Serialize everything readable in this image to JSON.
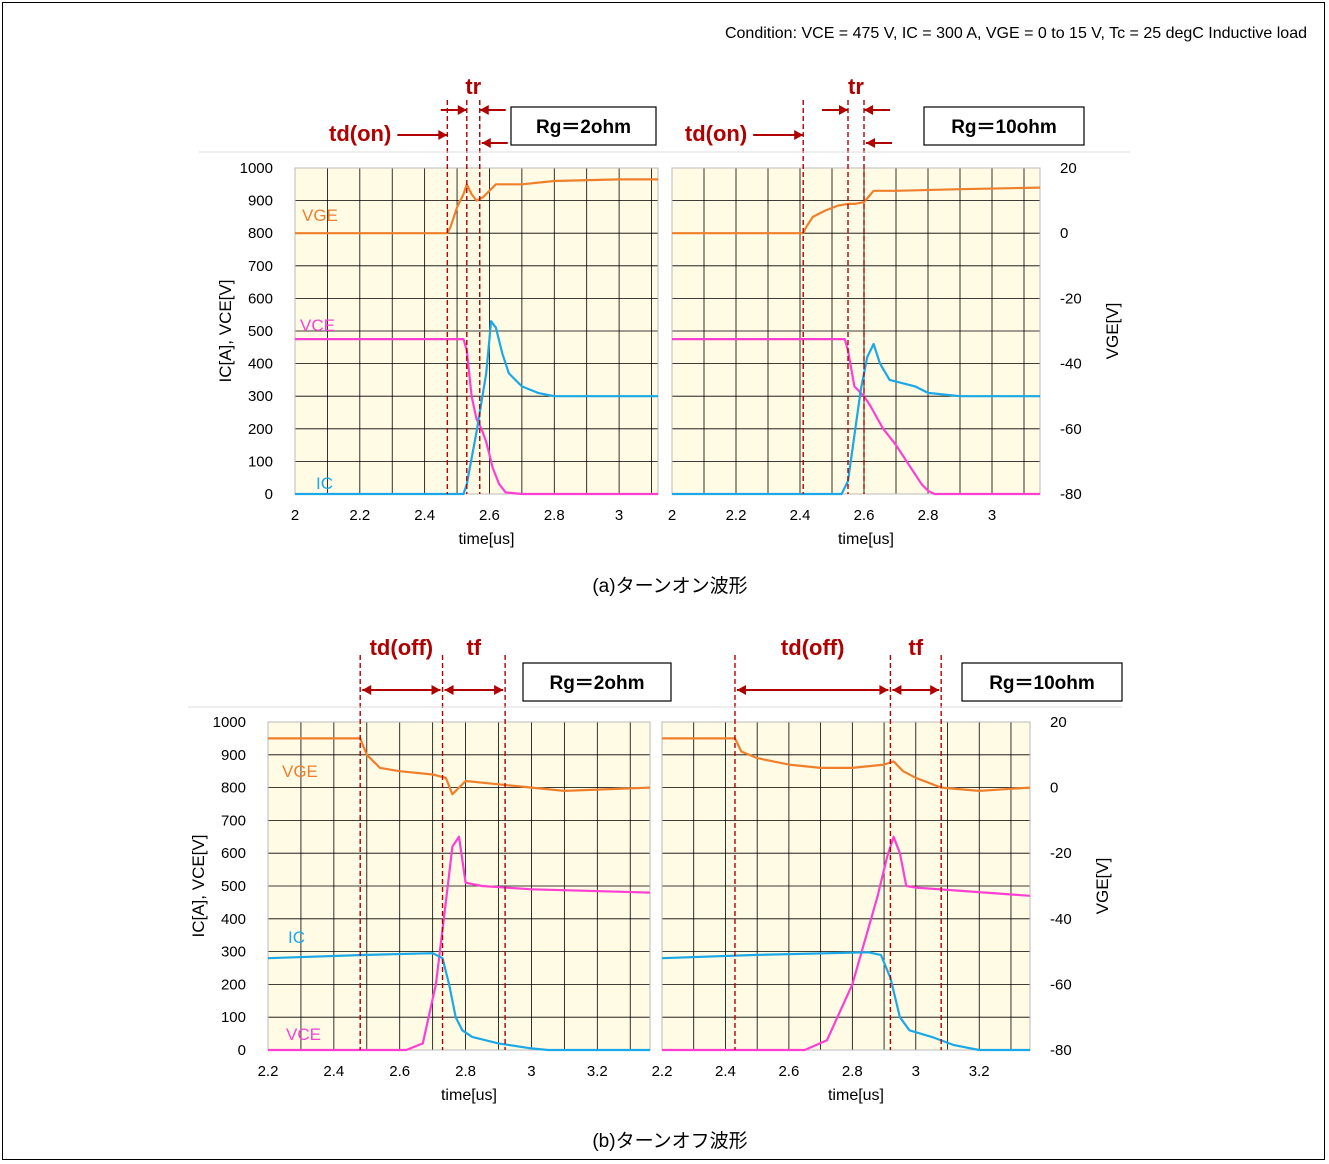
{
  "header": {
    "condition": "Condition: VCE = 475 V, IC = 300 A, VGE = 0 to 15 V, Tc = 25 degC Inductive load"
  },
  "colors": {
    "vge": "#f07f2b",
    "vce": "#ff3fd2",
    "ic": "#1aa9e6",
    "plot_bg": "#fffbe5",
    "marker": "#b00000",
    "grid": "#000000"
  },
  "sections": [
    {
      "caption": "(a)ターンオン波形",
      "left_ylabel": "IC[A], VCE[V]",
      "right_ylabel": "VGE[V]",
      "left_ticks": [
        "0",
        "100",
        "200",
        "300",
        "400",
        "500",
        "600",
        "700",
        "800",
        "900",
        "1000"
      ],
      "right_ticks": [
        "-80",
        "-60",
        "-40",
        "-20",
        "0",
        "20"
      ]
    },
    {
      "caption": "(b)ターンオフ波形",
      "left_ylabel": "IC[A], VCE[V]",
      "right_ylabel": "VGE[V]",
      "left_ticks": [
        "0",
        "100",
        "200",
        "300",
        "400",
        "500",
        "600",
        "700",
        "800",
        "900",
        "1000"
      ],
      "right_ticks": [
        "-80",
        "-60",
        "-40",
        "-20",
        "0",
        "20"
      ]
    }
  ],
  "chart_data": [
    {
      "type": "line",
      "panel": "turn-on",
      "box_label": "Rg＝2ohm",
      "xlabel": "time[us]",
      "x_ticks": [
        "2",
        "2.2",
        "2.4",
        "2.6",
        "2.8",
        "3"
      ],
      "xlim": [
        2.0,
        3.12
      ],
      "ylim": [
        0,
        1000
      ],
      "y2lim": [
        -80,
        20
      ],
      "grid": true,
      "series": [
        {
          "name": "VGE",
          "axis": "right",
          "x": [
            2.0,
            2.47,
            2.48,
            2.5,
            2.52,
            2.53,
            2.545,
            2.56,
            2.58,
            2.62,
            2.7,
            2.8,
            3.0,
            3.12
          ],
          "y": [
            0,
            0,
            2,
            8,
            12,
            15,
            12,
            10,
            11,
            15,
            15,
            16,
            16.5,
            16.5
          ]
        },
        {
          "name": "VCE",
          "axis": "left",
          "x": [
            2.0,
            2.52,
            2.53,
            2.545,
            2.56,
            2.575,
            2.59,
            2.6,
            2.61,
            2.63,
            2.65,
            2.7,
            3.12
          ],
          "y": [
            475,
            475,
            440,
            300,
            230,
            200,
            160,
            120,
            80,
            30,
            5,
            0,
            0
          ]
        },
        {
          "name": "IC",
          "axis": "left",
          "x": [
            2.0,
            2.52,
            2.53,
            2.56,
            2.59,
            2.605,
            2.62,
            2.64,
            2.66,
            2.7,
            2.75,
            2.8,
            2.9,
            3.0,
            3.12
          ],
          "y": [
            0,
            0,
            30,
            190,
            370,
            530,
            510,
            430,
            370,
            330,
            310,
            300,
            300,
            300,
            300
          ]
        }
      ],
      "annotations": [
        {
          "label": "td(on)",
          "from": 2.0,
          "to": 2.47
        },
        {
          "label": "tr",
          "from": 2.53,
          "to": 2.57
        }
      ]
    },
    {
      "type": "line",
      "panel": "turn-on",
      "box_label": "Rg＝10ohm",
      "xlabel": "time[us]",
      "x_ticks": [
        "2",
        "2.2",
        "2.4",
        "2.6",
        "2.8",
        "3"
      ],
      "xlim": [
        2.0,
        3.15
      ],
      "ylim": [
        0,
        1000
      ],
      "y2lim": [
        -80,
        20
      ],
      "grid": true,
      "series": [
        {
          "name": "VGE",
          "axis": "right",
          "x": [
            2.0,
            2.41,
            2.42,
            2.44,
            2.48,
            2.52,
            2.55,
            2.57,
            2.6,
            2.63,
            2.7,
            2.9,
            3.15
          ],
          "y": [
            0,
            0,
            2,
            5,
            7,
            8.5,
            9,
            9,
            9.5,
            13,
            13,
            13.5,
            14
          ]
        },
        {
          "name": "VCE",
          "axis": "left",
          "x": [
            2.0,
            2.54,
            2.55,
            2.57,
            2.6,
            2.62,
            2.66,
            2.7,
            2.74,
            2.78,
            2.8,
            2.82,
            3.15
          ],
          "y": [
            475,
            475,
            440,
            330,
            300,
            270,
            200,
            150,
            90,
            30,
            10,
            0,
            0
          ]
        },
        {
          "name": "IC",
          "axis": "left",
          "x": [
            2.0,
            2.53,
            2.55,
            2.57,
            2.59,
            2.61,
            2.63,
            2.65,
            2.68,
            2.72,
            2.76,
            2.8,
            2.9,
            3.0,
            3.15
          ],
          "y": [
            0,
            0,
            40,
            180,
            320,
            420,
            460,
            400,
            350,
            340,
            330,
            310,
            300,
            300,
            300
          ]
        }
      ],
      "annotations": [
        {
          "label": "td(on)",
          "from": 2.0,
          "to": 2.41
        },
        {
          "label": "tr",
          "from": 2.55,
          "to": 2.6
        }
      ]
    },
    {
      "type": "line",
      "panel": "turn-off",
      "box_label": "Rg＝2ohm",
      "xlabel": "time[us]",
      "x_ticks": [
        "2.2",
        "2.4",
        "2.6",
        "2.8",
        "3",
        "3.2"
      ],
      "xlim": [
        2.2,
        3.36
      ],
      "ylim": [
        0,
        1000
      ],
      "y2lim": [
        -80,
        20
      ],
      "grid": true,
      "series": [
        {
          "name": "VGE",
          "axis": "right",
          "x": [
            2.2,
            2.48,
            2.5,
            2.54,
            2.6,
            2.7,
            2.74,
            2.76,
            2.78,
            2.8,
            2.9,
            3.0,
            3.1,
            3.36
          ],
          "y": [
            15,
            15,
            10,
            6,
            5,
            4,
            3,
            -2,
            0,
            2,
            1,
            0,
            -1,
            0
          ]
        },
        {
          "name": "VCE",
          "axis": "left",
          "x": [
            2.2,
            2.62,
            2.67,
            2.71,
            2.74,
            2.76,
            2.78,
            2.8,
            2.85,
            3.0,
            3.36
          ],
          "y": [
            0,
            0,
            20,
            200,
            450,
            620,
            650,
            510,
            500,
            490,
            480
          ]
        },
        {
          "name": "IC",
          "axis": "left",
          "x": [
            2.2,
            2.5,
            2.7,
            2.73,
            2.75,
            2.77,
            2.79,
            2.82,
            2.9,
            3.0,
            3.05,
            3.36
          ],
          "y": [
            280,
            290,
            295,
            280,
            200,
            100,
            60,
            40,
            20,
            5,
            0,
            0
          ]
        }
      ],
      "annotations": [
        {
          "label": "td(off)",
          "from": 2.48,
          "to": 2.73
        },
        {
          "label": "tf",
          "from": 2.73,
          "to": 2.92
        }
      ]
    },
    {
      "type": "line",
      "panel": "turn-off",
      "box_label": "Rg＝10ohm",
      "xlabel": "time[us]",
      "x_ticks": [
        "2.2",
        "2.4",
        "2.6",
        "2.8",
        "3",
        "3.2"
      ],
      "xlim": [
        2.2,
        3.36
      ],
      "ylim": [
        0,
        1000
      ],
      "y2lim": [
        -80,
        20
      ],
      "grid": true,
      "series": [
        {
          "name": "VGE",
          "axis": "right",
          "x": [
            2.2,
            2.43,
            2.45,
            2.5,
            2.6,
            2.7,
            2.8,
            2.9,
            2.93,
            2.96,
            3.0,
            3.08,
            3.2,
            3.36
          ],
          "y": [
            15,
            15,
            11,
            9,
            7,
            6,
            6,
            7,
            8,
            5,
            3,
            0,
            -1,
            0
          ]
        },
        {
          "name": "VCE",
          "axis": "left",
          "x": [
            2.2,
            2.65,
            2.72,
            2.8,
            2.88,
            2.91,
            2.93,
            2.95,
            2.97,
            3.0,
            3.36
          ],
          "y": [
            0,
            0,
            30,
            200,
            470,
            590,
            650,
            600,
            500,
            495,
            470
          ]
        },
        {
          "name": "IC",
          "axis": "left",
          "x": [
            2.2,
            2.5,
            2.85,
            2.89,
            2.92,
            2.95,
            2.98,
            3.05,
            3.12,
            3.2,
            3.36
          ],
          "y": [
            280,
            290,
            298,
            290,
            220,
            100,
            60,
            40,
            15,
            0,
            0
          ]
        }
      ],
      "annotations": [
        {
          "label": "td(off)",
          "from": 2.43,
          "to": 2.92
        },
        {
          "label": "tf",
          "from": 2.92,
          "to": 3.08
        }
      ]
    }
  ]
}
